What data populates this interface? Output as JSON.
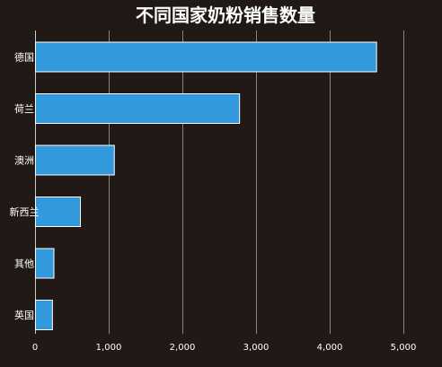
{
  "chart_data": {
    "type": "bar",
    "orientation": "horizontal",
    "title": "不同国家奶粉销售数量",
    "categories": [
      "德国",
      "荷兰",
      "澳洲",
      "新西兰",
      "其他",
      "英国"
    ],
    "values": [
      4630,
      2770,
      1070,
      610,
      250,
      230
    ],
    "xlabel": "",
    "ylabel": "",
    "xlim": [
      0,
      5000
    ],
    "xticks": [
      0,
      1000,
      2000,
      3000,
      4000,
      5000
    ],
    "xtick_labels": [
      "0",
      "1,000",
      "2,000",
      "3,000",
      "4,000",
      "5,000"
    ],
    "grid": "vertical",
    "legend": "none",
    "colors": {
      "bar": "#3399dd",
      "background": "#211915",
      "text": "#ffffff",
      "grid": "#8a8480"
    }
  }
}
